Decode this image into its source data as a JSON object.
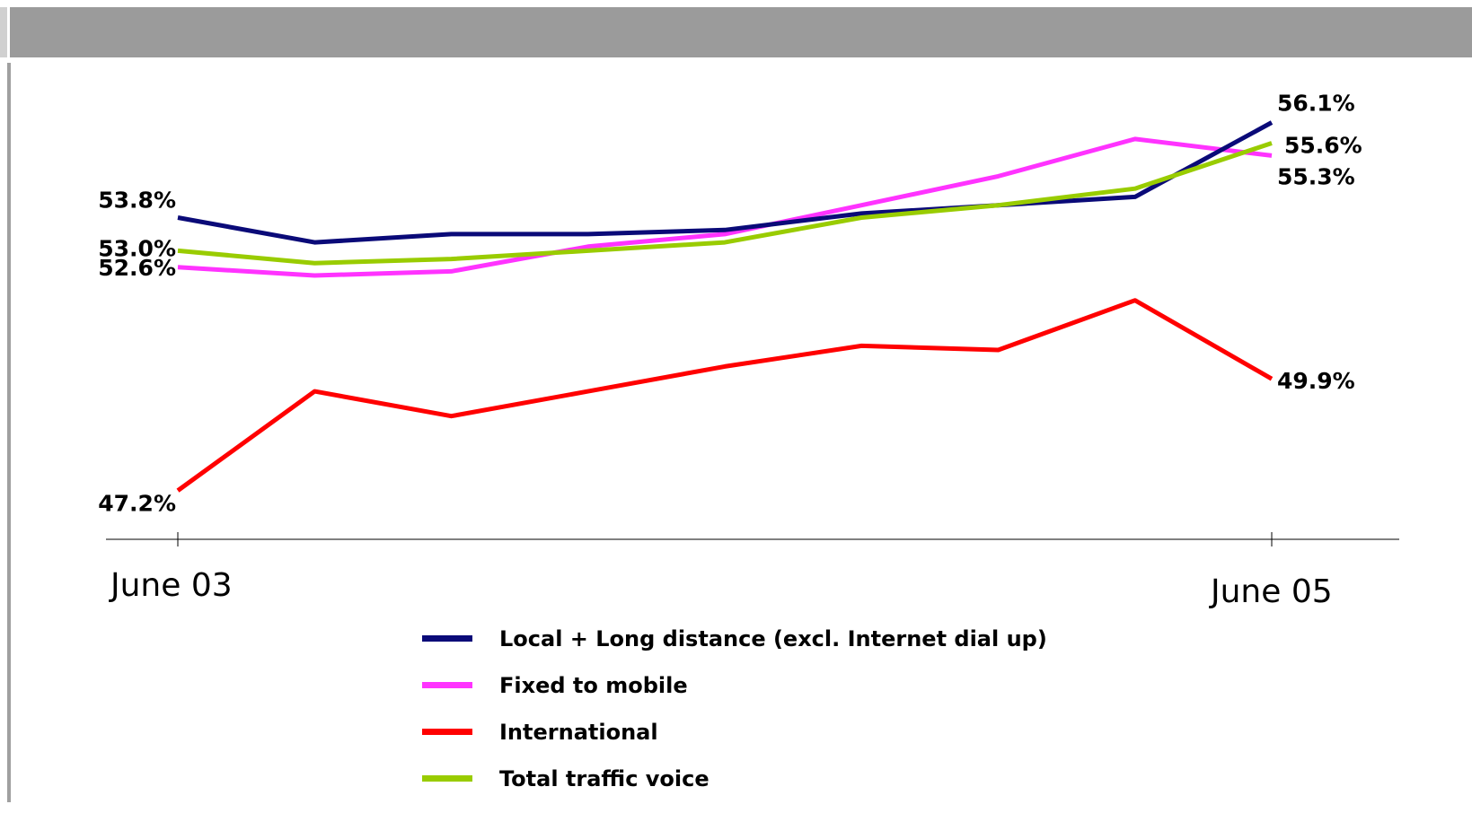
{
  "chart_data": {
    "type": "line",
    "x": [
      "June 03",
      "",
      "",
      "",
      "",
      "",
      "",
      "",
      "June 05"
    ],
    "xticklabels": [
      "June 03",
      "June 05"
    ],
    "ylim": [
      46.0,
      57.0
    ],
    "grid": false,
    "legend_placement": "bottom",
    "series": [
      {
        "name": "Local + Long distance (excl. Internet dial up)",
        "color": "#0a0a78",
        "values": [
          53.8,
          53.2,
          53.4,
          53.4,
          53.5,
          53.9,
          54.1,
          54.3,
          56.1
        ],
        "start_label": "53.8%",
        "end_label": "56.1%"
      },
      {
        "name": "Fixed to mobile",
        "color": "#ff33ff",
        "values": [
          52.6,
          52.4,
          52.5,
          53.1,
          53.4,
          54.1,
          54.8,
          55.7,
          55.3
        ],
        "start_label": "52.6%",
        "end_label": "55.3%"
      },
      {
        "name": "International",
        "color": "#ff0000",
        "values": [
          47.2,
          49.6,
          49.0,
          49.6,
          50.2,
          50.7,
          50.6,
          51.8,
          49.9
        ],
        "start_label": "47.2%",
        "end_label": "49.9%"
      },
      {
        "name": "Total traffic voice",
        "color": "#99cc00",
        "values": [
          53.0,
          52.7,
          52.8,
          53.0,
          53.2,
          53.8,
          54.1,
          54.5,
          55.6
        ],
        "start_label": "53.0%",
        "end_label": "55.6%"
      }
    ]
  }
}
